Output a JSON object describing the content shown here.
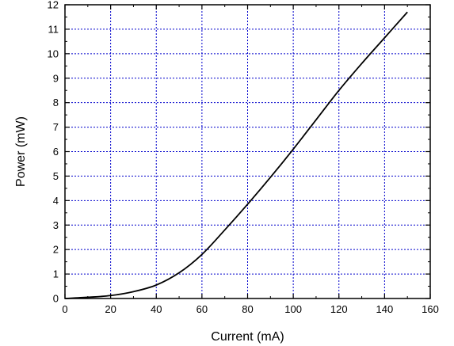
{
  "chart_data": {
    "type": "line",
    "title": "",
    "xlabel": "Current (mA)",
    "ylabel": "Power (mW)",
    "xlim": [
      0,
      160
    ],
    "ylim": [
      0,
      12
    ],
    "xticks": [
      0,
      20,
      40,
      60,
      80,
      100,
      120,
      140,
      160
    ],
    "yticks": [
      0,
      1,
      2,
      3,
      4,
      5,
      6,
      7,
      8,
      9,
      10,
      11,
      12
    ],
    "grid": true,
    "grid_style": "dotted",
    "grid_color": "#0000cc",
    "line_color": "#000000",
    "series": [
      {
        "x": [
          0,
          10,
          20,
          30,
          40,
          50,
          60,
          70,
          80,
          90,
          100,
          110,
          120,
          130,
          140,
          150
        ],
        "y": [
          0.0,
          0.05,
          0.12,
          0.28,
          0.55,
          1.05,
          1.8,
          2.8,
          3.85,
          4.95,
          6.1,
          7.3,
          8.5,
          9.6,
          10.65,
          11.7
        ]
      }
    ]
  }
}
